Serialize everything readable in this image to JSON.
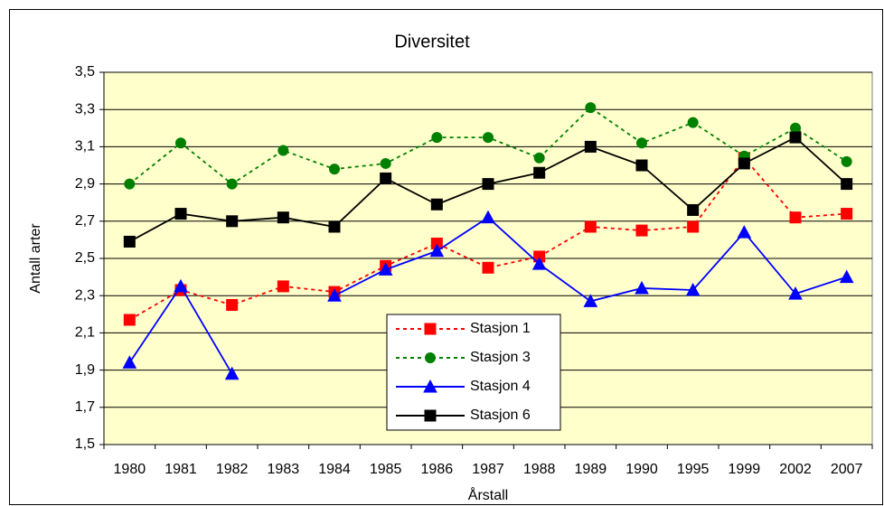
{
  "chart_data": {
    "type": "line",
    "title": "Diversitet",
    "x_label": "Årstall",
    "y_label": "Antall arter",
    "categories": [
      "1980",
      "1981",
      "1982",
      "1983",
      "1984",
      "1985",
      "1986",
      "1987",
      "1988",
      "1989",
      "1990",
      "1995",
      "1999",
      "2002",
      "2007"
    ],
    "ylim": [
      1.5,
      3.5
    ],
    "yticks": [
      {
        "value": 1.5,
        "label": "1,5"
      },
      {
        "value": 1.7,
        "label": "1,7"
      },
      {
        "value": 1.9,
        "label": "1,9"
      },
      {
        "value": 2.1,
        "label": "2,1"
      },
      {
        "value": 2.3,
        "label": "2,3"
      },
      {
        "value": 2.5,
        "label": "2,5"
      },
      {
        "value": 2.7,
        "label": "2,7"
      },
      {
        "value": 2.9,
        "label": "2,9"
      },
      {
        "value": 3.1,
        "label": "3,1"
      },
      {
        "value": 3.3,
        "label": "3,3"
      },
      {
        "value": 3.5,
        "label": "3,5"
      }
    ],
    "grid": true,
    "plot_background": "#ffffcc",
    "series": [
      {
        "name": "Stasjon 1",
        "color": "#ff0000",
        "line_style": "dashed",
        "marker": "square",
        "values": [
          2.17,
          2.33,
          2.25,
          2.35,
          2.32,
          2.46,
          2.58,
          2.45,
          2.51,
          2.67,
          2.65,
          2.67,
          3.04,
          2.72,
          2.74
        ]
      },
      {
        "name": "Stasjon 3",
        "color": "#008000",
        "line_style": "dashed",
        "marker": "circle",
        "values": [
          2.9,
          3.12,
          2.9,
          3.08,
          2.98,
          3.01,
          3.15,
          3.15,
          3.04,
          3.31,
          3.12,
          3.23,
          3.05,
          3.2,
          3.02
        ]
      },
      {
        "name": "Stasjon 4",
        "color": "#0000ff",
        "line_style": "solid",
        "marker": "triangle",
        "values": [
          1.94,
          2.35,
          1.88,
          null,
          2.3,
          2.44,
          2.54,
          2.72,
          2.47,
          2.27,
          2.34,
          2.33,
          2.64,
          2.31,
          2.4
        ]
      },
      {
        "name": "Stasjon 6",
        "color": "#000000",
        "line_style": "solid",
        "marker": "square",
        "values": [
          2.59,
          2.74,
          2.7,
          2.72,
          2.67,
          2.93,
          2.79,
          2.9,
          2.96,
          3.1,
          3.0,
          2.76,
          3.01,
          3.15,
          2.9
        ]
      }
    ]
  }
}
